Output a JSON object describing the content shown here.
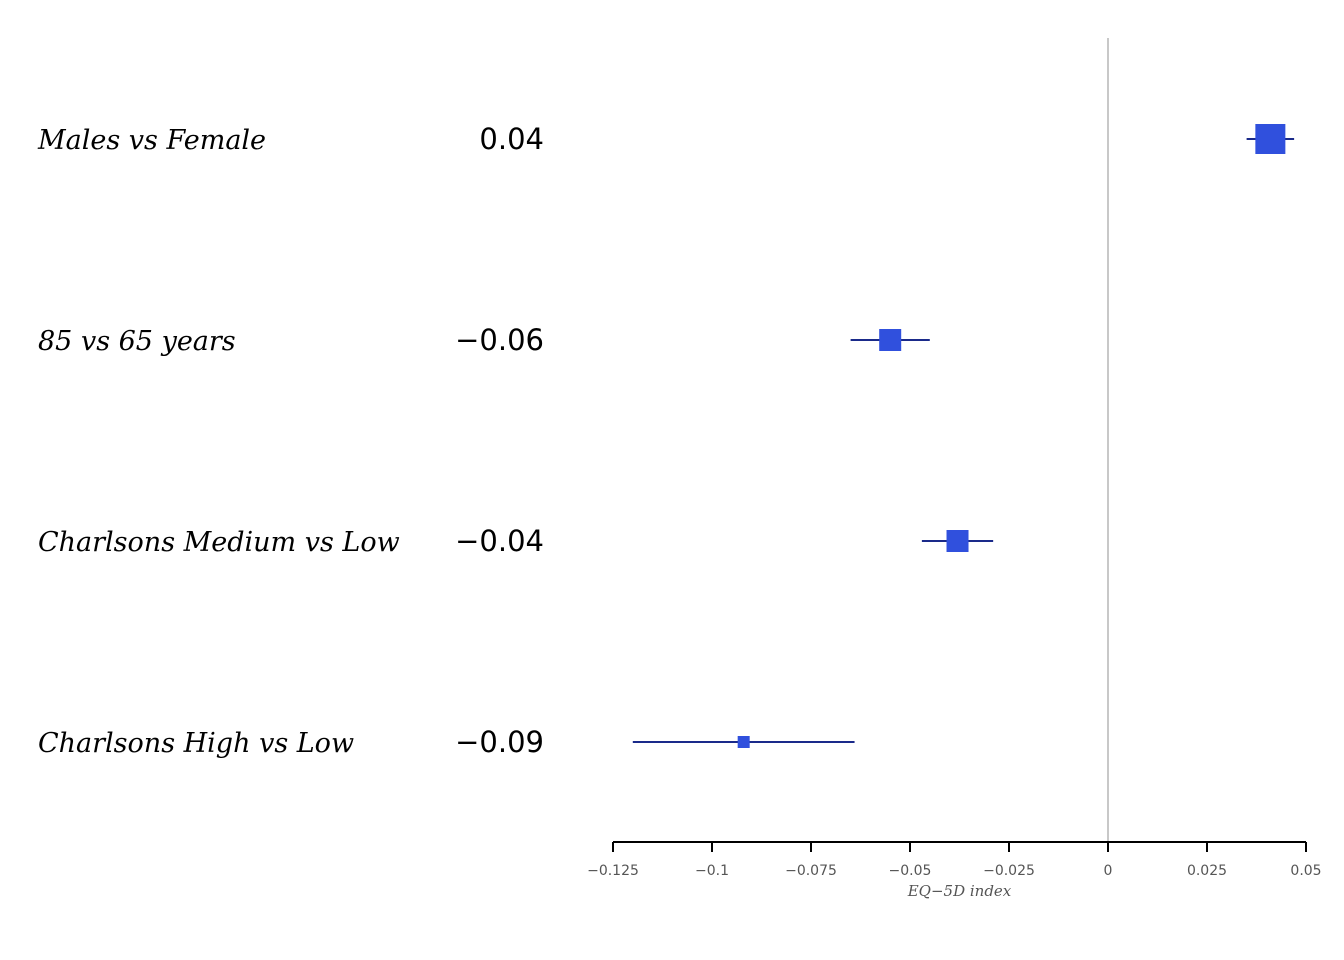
{
  "chart_data": {
    "type": "forest",
    "rows": [
      {
        "label": "Males vs Female",
        "value_text": "0.04",
        "estimate": 0.041,
        "ci_low": 0.035,
        "ci_high": 0.047,
        "weight": "large"
      },
      {
        "label": "85 vs 65 years",
        "value_text": "−0.06",
        "estimate": -0.055,
        "ci_low": -0.065,
        "ci_high": -0.045,
        "weight": "medium"
      },
      {
        "label": "Charlsons Medium vs Low",
        "value_text": "−0.04",
        "estimate": -0.038,
        "ci_low": -0.047,
        "ci_high": -0.029,
        "weight": "medium"
      },
      {
        "label": "Charlsons High vs Low",
        "value_text": "−0.09",
        "estimate": -0.092,
        "ci_low": -0.12,
        "ci_high": -0.064,
        "weight": "small"
      }
    ],
    "xaxis": {
      "label": "EQ−5D index",
      "range": [
        -0.125,
        0.05
      ],
      "ticks": [
        -0.125,
        -0.1,
        -0.075,
        -0.05,
        -0.025,
        0,
        0.025,
        0.05
      ],
      "tick_labels": [
        "−0.125",
        "−0.1",
        "−0.075",
        "−0.05",
        "−0.025",
        "0",
        "0.025",
        "0.05"
      ]
    },
    "reference_line": 0,
    "colors": {
      "marker": "#3050dd",
      "ci_line": "#1a2a8a",
      "reference": "#c8c8c8",
      "axis": "#000000"
    }
  }
}
